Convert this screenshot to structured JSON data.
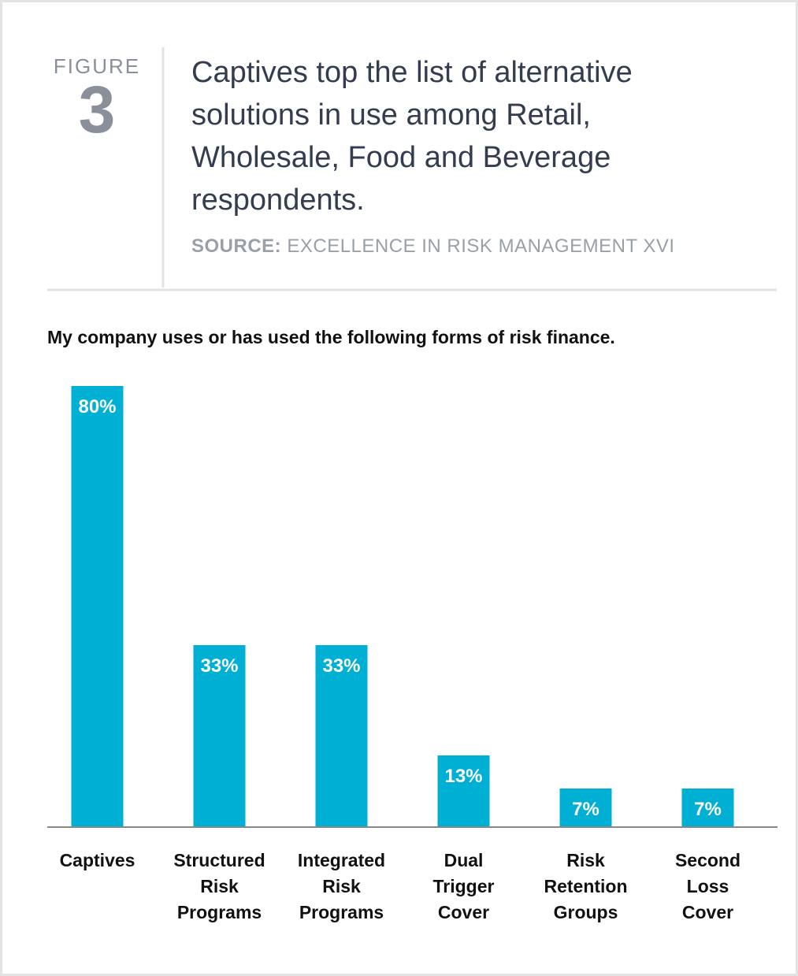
{
  "figure": {
    "label": "FIGURE",
    "number": "3"
  },
  "header": {
    "title": "Captives top the list of alternative solutions in use among Retail, Wholesale, Food and Beverage respondents.",
    "source_label": "SOURCE:",
    "source": "EXCELLENCE IN RISK MANAGEMENT XVI"
  },
  "chart_data": {
    "type": "bar",
    "subtitle": "My company uses or has used the following forms of risk finance.",
    "categories": [
      "Captives",
      "Structured Risk Programs",
      "Integrated Risk Programs",
      "Dual Trigger Cover",
      "Risk Retention Groups",
      "Second Loss Cover"
    ],
    "values": [
      80,
      33,
      33,
      13,
      7,
      7
    ],
    "value_labels": [
      "80%",
      "33%",
      "33%",
      "13%",
      "7%",
      "7%"
    ],
    "color": "#00afd4"
  }
}
